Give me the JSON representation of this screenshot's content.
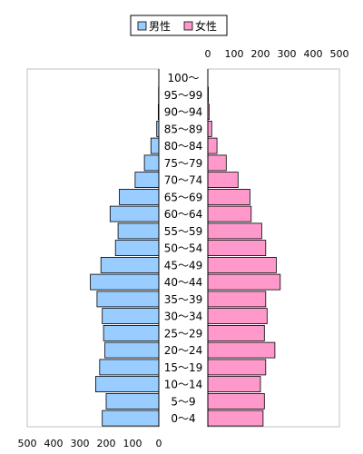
{
  "chart_data": {
    "type": "bar",
    "orientation": "population-pyramid",
    "legend": {
      "placement": "top-center",
      "box": true
    },
    "series": [
      {
        "name": "男性",
        "color": "#99ccff",
        "values": [
          215,
          200,
          240,
          225,
          205,
          210,
          215,
          235,
          260,
          220,
          165,
          155,
          185,
          150,
          90,
          55,
          30,
          8,
          2,
          1,
          0
        ]
      },
      {
        "name": "女性",
        "color": "#ff99cc",
        "values": [
          210,
          215,
          200,
          220,
          255,
          215,
          225,
          220,
          275,
          260,
          220,
          205,
          165,
          160,
          115,
          70,
          35,
          15,
          5,
          2,
          0
        ]
      }
    ],
    "categories": [
      "0〜4",
      "5〜9",
      "10〜14",
      "15〜19",
      "20〜24",
      "25〜29",
      "30〜34",
      "35〜39",
      "40〜44",
      "45〜49",
      "50〜54",
      "55〜59",
      "60〜64",
      "65〜69",
      "70〜74",
      "75〜79",
      "80〜84",
      "85〜89",
      "90〜94",
      "95〜99",
      "100〜"
    ],
    "male_axis": {
      "ticks": [
        "500",
        "400",
        "300",
        "200",
        "100",
        "0"
      ],
      "range": [
        0,
        500
      ],
      "position": "bottom"
    },
    "female_axis": {
      "ticks": [
        "0",
        "100",
        "200",
        "300",
        "400",
        "500"
      ],
      "range": [
        0,
        500
      ],
      "position": "top"
    },
    "grid": false,
    "title": "",
    "xlabel": "",
    "ylabel": ""
  }
}
